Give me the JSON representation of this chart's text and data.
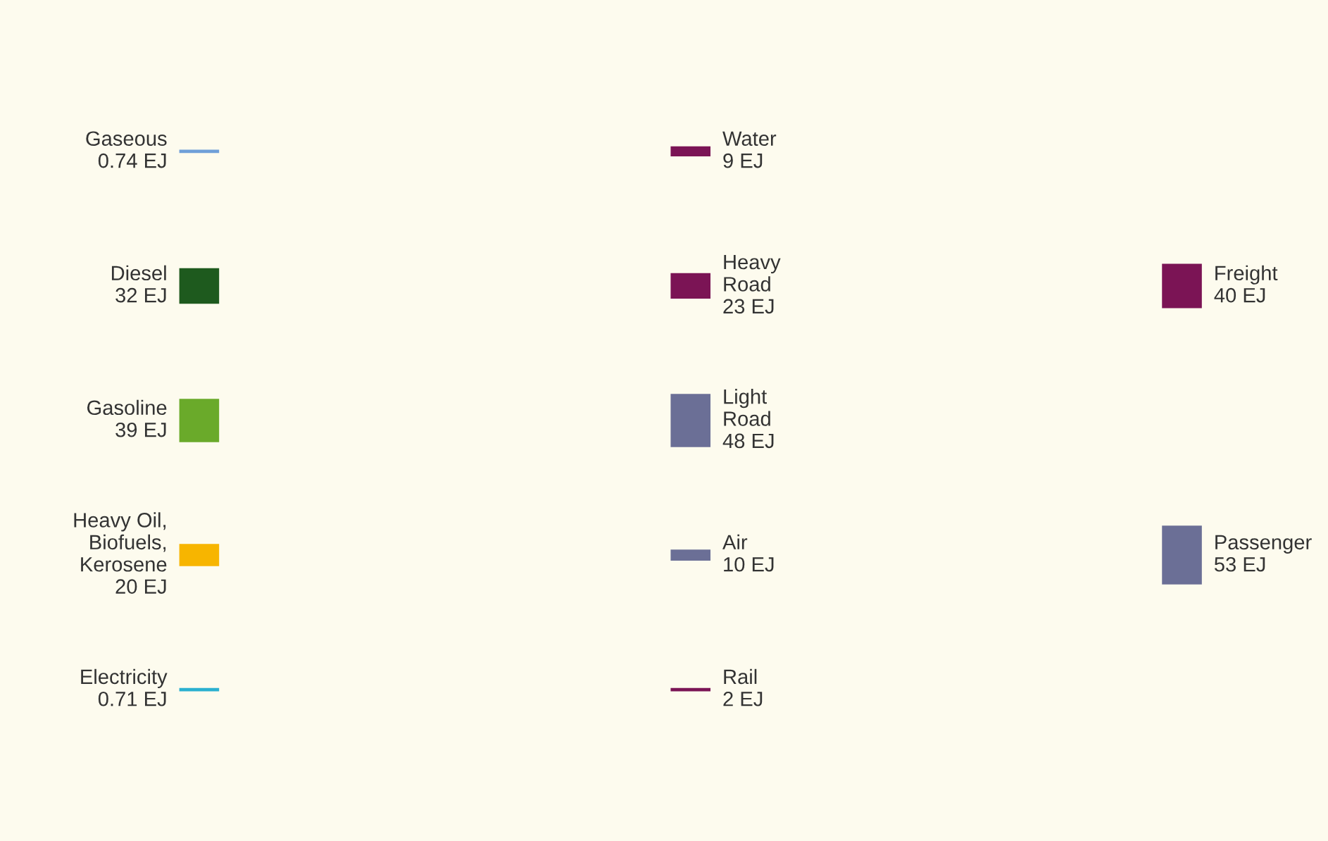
{
  "chart_data": [
    {
      "type": "other",
      "categories": [
        "Gaseous",
        "Diesel",
        "Gasoline",
        "Heavy Oil,\nBiofuels,\nKerosene",
        "Electricity"
      ],
      "values": [
        0.74,
        32,
        39,
        20,
        0.71
      ],
      "value_labels": [
        "0.74 EJ",
        "32 EJ",
        "39 EJ",
        "20 EJ",
        "0.71 EJ"
      ],
      "colors": [
        "#6f9fd8",
        "#1e5a1e",
        "#6aaa2a",
        "#f7b500",
        "#2ab0d0"
      ]
    },
    {
      "type": "other",
      "categories": [
        "Water",
        "Heavy\nRoad",
        "Light\nRoad",
        "Air",
        "Rail"
      ],
      "values": [
        9,
        23,
        48,
        10,
        2
      ],
      "value_labels": [
        "9 EJ",
        "23 EJ",
        "48 EJ",
        "10 EJ",
        "2 EJ"
      ],
      "colors": [
        "#7b1455",
        "#7b1455",
        "#6b6f96",
        "#6b6f96",
        "#7b1455"
      ]
    },
    {
      "type": "other",
      "categories": [
        "Freight",
        "Passenger"
      ],
      "values": [
        40,
        53
      ],
      "value_labels": [
        "40 EJ",
        "53 EJ"
      ],
      "colors": [
        "#7b1455",
        "#6b6f96"
      ]
    }
  ]
}
